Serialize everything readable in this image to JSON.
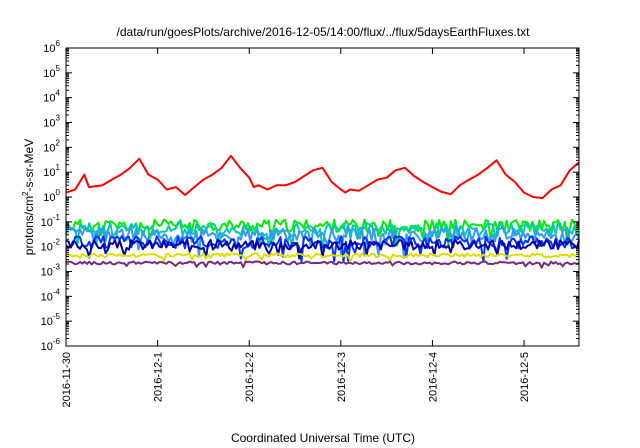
{
  "chart_data": {
    "type": "line",
    "title": "/data/run/goesPlots/archive/2016-12-05/14:00/flux/../flux/5daysEarthFluxes.txt",
    "xlabel": "Coordinated Universal Time (UTC)",
    "ylabel": {
      "base": "protons/cm",
      "sup": "2",
      "rest": "-s-sr-MeV"
    },
    "y_scale": "log",
    "ylim": [
      1e-06,
      1000000.0
    ],
    "y_ticks": [
      {
        "base": "10",
        "exp": "6"
      },
      {
        "base": "10",
        "exp": "5"
      },
      {
        "base": "10",
        "exp": "4"
      },
      {
        "base": "10",
        "exp": "3"
      },
      {
        "base": "10",
        "exp": "2"
      },
      {
        "base": "10",
        "exp": "1"
      },
      {
        "base": "10",
        "exp": "0"
      },
      {
        "base": "10",
        "exp": "-1"
      },
      {
        "base": "10",
        "exp": "-2"
      },
      {
        "base": "10",
        "exp": "-3"
      },
      {
        "base": "10",
        "exp": "-4"
      },
      {
        "base": "10",
        "exp": "-5"
      },
      {
        "base": "10",
        "exp": "-6"
      }
    ],
    "x_ticks": [
      "2016-11-30",
      "2016-12-1",
      "2016-12-2",
      "2016-12-3",
      "2016-12-4",
      "2016-12-5"
    ],
    "xlim_days": [
      0,
      5.6
    ],
    "grid": false,
    "series": [
      {
        "color": "#ff0000",
        "points": [
          [
            0,
            1.5
          ],
          [
            0.1,
            2
          ],
          [
            0.2,
            8
          ],
          [
            0.25,
            2.5
          ],
          [
            0.4,
            3
          ],
          [
            0.5,
            5
          ],
          [
            0.6,
            8
          ],
          [
            0.7,
            15
          ],
          [
            0.8,
            35
          ],
          [
            0.9,
            8
          ],
          [
            1.0,
            5
          ],
          [
            1.1,
            2
          ],
          [
            1.2,
            2.5
          ],
          [
            1.3,
            1.2
          ],
          [
            1.4,
            2.5
          ],
          [
            1.5,
            5
          ],
          [
            1.6,
            8
          ],
          [
            1.7,
            15
          ],
          [
            1.8,
            45
          ],
          [
            1.9,
            15
          ],
          [
            2.0,
            6
          ],
          [
            2.05,
            2.5
          ],
          [
            2.1,
            3
          ],
          [
            2.2,
            2
          ],
          [
            2.3,
            3
          ],
          [
            2.4,
            3
          ],
          [
            2.5,
            4
          ],
          [
            2.6,
            7
          ],
          [
            2.7,
            12
          ],
          [
            2.8,
            15
          ],
          [
            2.9,
            4
          ],
          [
            3.0,
            2
          ],
          [
            3.05,
            1.5
          ],
          [
            3.1,
            2
          ],
          [
            3.2,
            1.8
          ],
          [
            3.3,
            3
          ],
          [
            3.4,
            5
          ],
          [
            3.5,
            6
          ],
          [
            3.6,
            12
          ],
          [
            3.7,
            15
          ],
          [
            3.8,
            7
          ],
          [
            3.9,
            4
          ],
          [
            4.0,
            2.5
          ],
          [
            4.1,
            1.6
          ],
          [
            4.2,
            1.3
          ],
          [
            4.3,
            3
          ],
          [
            4.4,
            5
          ],
          [
            4.5,
            8
          ],
          [
            4.6,
            15
          ],
          [
            4.7,
            30
          ],
          [
            4.8,
            8
          ],
          [
            4.9,
            4
          ],
          [
            5.0,
            1.5
          ],
          [
            5.1,
            1.0
          ],
          [
            5.2,
            0.9
          ],
          [
            5.3,
            2
          ],
          [
            5.4,
            3
          ],
          [
            5.5,
            12
          ],
          [
            5.6,
            25
          ]
        ]
      },
      {
        "color": "#00ee00",
        "level": 0.07,
        "amp": 0.25,
        "seed": 11
      },
      {
        "color": "#00ccaa",
        "level": 0.05,
        "amp": 0.28,
        "seed": 23
      },
      {
        "color": "#3399ff",
        "level": 0.03,
        "amp": 0.3,
        "seed": 37
      },
      {
        "color": "#0033ff",
        "level": 0.015,
        "amp": 0.25,
        "seed": 51
      },
      {
        "color": "#0000aa",
        "level": 0.012,
        "amp": 0.2,
        "seed": 67
      },
      {
        "color": "#dddd00",
        "level": 0.0045,
        "amp": 0.08,
        "seed": 79
      },
      {
        "color": "#7a2a7a",
        "level": 0.0022,
        "amp": 0.06,
        "seed": 91
      }
    ]
  }
}
